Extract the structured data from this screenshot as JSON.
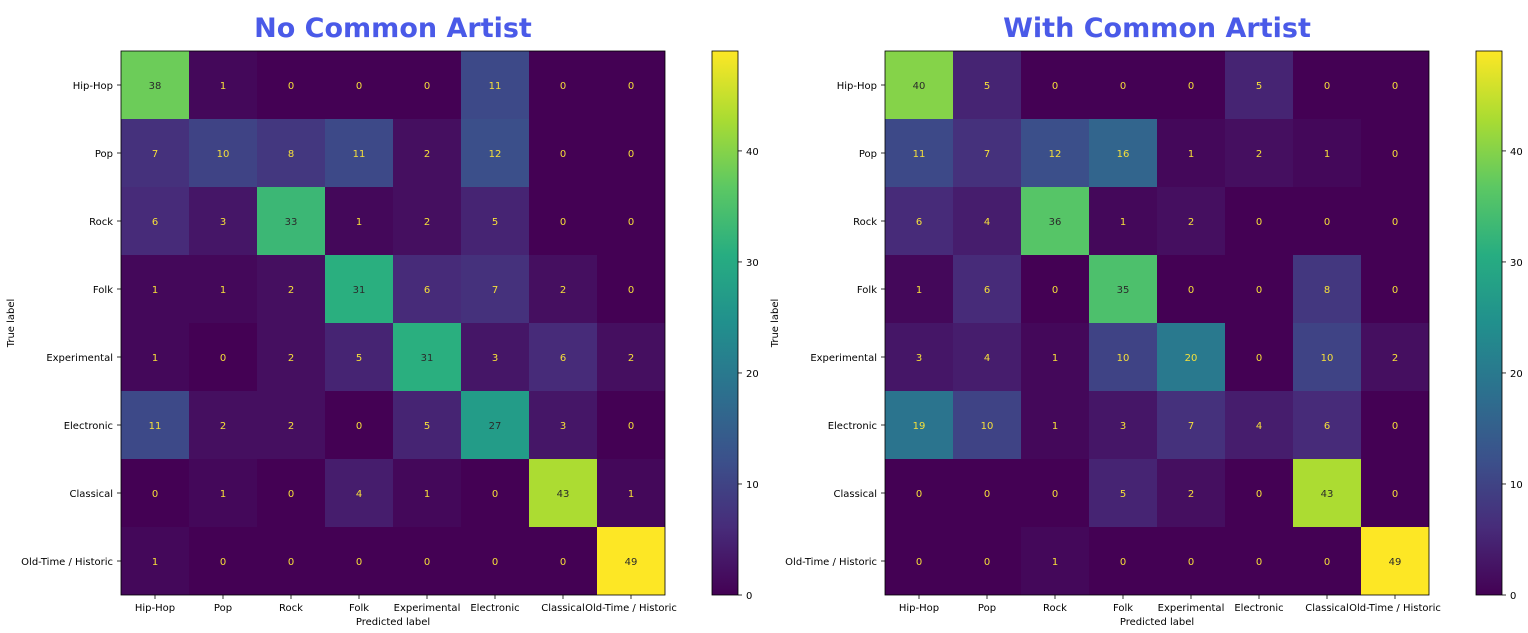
{
  "chart_data": [
    {
      "type": "heatmap",
      "title": "No Common Artist",
      "xlabel": "Predicted label",
      "ylabel": "True label",
      "categories": [
        "Hip-Hop",
        "Pop",
        "Rock",
        "Folk",
        "Experimental",
        "Electronic",
        "Classical",
        "Old-Time / Historic"
      ],
      "values": [
        [
          38,
          1,
          0,
          0,
          0,
          11,
          0,
          0
        ],
        [
          7,
          10,
          8,
          11,
          2,
          12,
          0,
          0
        ],
        [
          6,
          3,
          33,
          1,
          2,
          5,
          0,
          0
        ],
        [
          1,
          1,
          2,
          31,
          6,
          7,
          2,
          0
        ],
        [
          1,
          0,
          2,
          5,
          31,
          3,
          6,
          2
        ],
        [
          11,
          2,
          2,
          0,
          5,
          27,
          3,
          0
        ],
        [
          0,
          1,
          0,
          4,
          1,
          0,
          43,
          1
        ],
        [
          1,
          0,
          0,
          0,
          0,
          0,
          0,
          49
        ]
      ],
      "colorbar": {
        "range": [
          0,
          49
        ],
        "ticks": [
          0,
          10,
          20,
          30,
          40
        ]
      },
      "colormap": "viridis"
    },
    {
      "type": "heatmap",
      "title": "With Common Artist",
      "xlabel": "Predicted label",
      "ylabel": "True label",
      "categories": [
        "Hip-Hop",
        "Pop",
        "Rock",
        "Folk",
        "Experimental",
        "Electronic",
        "Classical",
        "Old-Time / Historic"
      ],
      "values": [
        [
          40,
          5,
          0,
          0,
          0,
          5,
          0,
          0
        ],
        [
          11,
          7,
          12,
          16,
          1,
          2,
          1,
          0
        ],
        [
          6,
          4,
          36,
          1,
          2,
          0,
          0,
          0
        ],
        [
          1,
          6,
          0,
          35,
          0,
          0,
          8,
          0
        ],
        [
          3,
          4,
          1,
          10,
          20,
          0,
          10,
          2
        ],
        [
          19,
          10,
          1,
          3,
          7,
          4,
          6,
          0
        ],
        [
          0,
          0,
          0,
          5,
          2,
          0,
          43,
          0
        ],
        [
          0,
          0,
          1,
          0,
          0,
          0,
          0,
          49
        ]
      ],
      "colorbar": {
        "range": [
          0,
          49
        ],
        "ticks": [
          0,
          10,
          20,
          30,
          40
        ]
      },
      "colormap": "viridis"
    }
  ],
  "colors": {
    "title": "#4a5ae8",
    "text_dark": "#2b2b2b",
    "text_light": "#f6e03a"
  }
}
